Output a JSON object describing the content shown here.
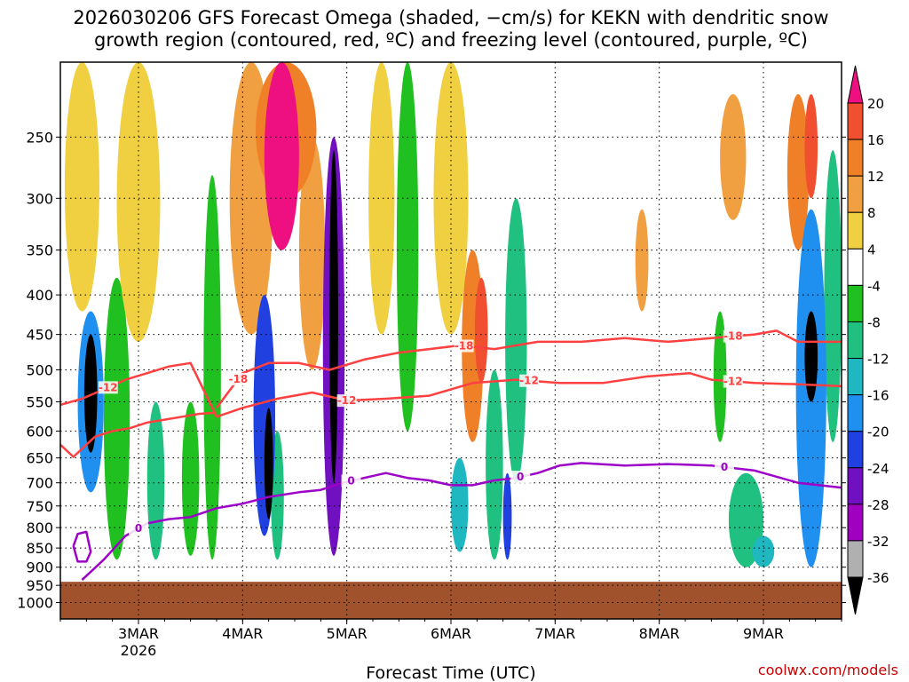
{
  "title": {
    "line1": "2026030206 GFS Forecast Omega (shaded, −cm/s) for KEKN with dendritic snow",
    "line2": "growth region (contoured, red, ºC) and freezing level (contoured, purple, ºC)"
  },
  "credit": "coolwx.com/models",
  "chart_data": {
    "type": "heatmap",
    "title": "2026030206 GFS Forecast Omega (shaded, −cm/s) for KEKN with dendritic snow growth region (contoured, red, ºC) and freezing level (contoured, purple, ºC)",
    "xlabel": "Forecast Time (UTC)",
    "ylabel": "",
    "x_range_hours": [
      0,
      180
    ],
    "y_range_hpa": [
      200,
      1050
    ],
    "x_ticks": [
      {
        "hour": 18,
        "label": "3MAR",
        "sublabel": "2026"
      },
      {
        "hour": 42,
        "label": "4MAR",
        "sublabel": ""
      },
      {
        "hour": 66,
        "label": "5MAR",
        "sublabel": ""
      },
      {
        "hour": 90,
        "label": "6MAR",
        "sublabel": ""
      },
      {
        "hour": 114,
        "label": "7MAR",
        "sublabel": ""
      },
      {
        "hour": 138,
        "label": "8MAR",
        "sublabel": ""
      },
      {
        "hour": 162,
        "label": "9MAR",
        "sublabel": ""
      }
    ],
    "y_ticks": [
      250,
      300,
      350,
      400,
      450,
      500,
      550,
      600,
      650,
      700,
      750,
      800,
      850,
      900,
      950,
      1000
    ],
    "surface_pressure_hpa": 940,
    "surface_color": "#a0522d",
    "colorbar": {
      "ticks": [
        "20",
        "16",
        "12",
        "8",
        "4",
        "-4",
        "-8",
        "-12",
        "-16",
        "-20",
        "-24",
        "-28",
        "-32",
        "-36"
      ],
      "bins": [
        {
          "label": ">20",
          "color": "#ee1080"
        },
        {
          "label": "16 to 20",
          "color": "#f05030"
        },
        {
          "label": "12 to 16",
          "color": "#f08028"
        },
        {
          "label": "8 to 12",
          "color": "#f0a040"
        },
        {
          "label": "4 to 8",
          "color": "#f0d040"
        },
        {
          "label": "-4 to 4",
          "color": "#ffffff"
        },
        {
          "label": "-8 to -4",
          "color": "#20c020"
        },
        {
          "label": "-12 to -8",
          "color": "#20c080"
        },
        {
          "label": "-16 to -12",
          "color": "#20b8c0"
        },
        {
          "label": "-20 to -16",
          "color": "#2090f0"
        },
        {
          "label": "-24 to -20",
          "color": "#2040e0"
        },
        {
          "label": "-28 to -24",
          "color": "#7010c0"
        },
        {
          "label": "-32 to -28",
          "color": "#a000c0"
        },
        {
          "label": "-36 to -32",
          "color": "#b0b0b0"
        },
        {
          "label": "<-36",
          "color": "#000000"
        }
      ]
    },
    "omega_features": [
      {
        "hour": 7,
        "p_top": 450,
        "p_bottom": 640,
        "width": 3,
        "value": -38
      },
      {
        "hour": 7,
        "p_top": 420,
        "p_bottom": 720,
        "width": 6,
        "value": -18
      },
      {
        "hour": 13,
        "p_top": 380,
        "p_bottom": 880,
        "width": 6,
        "value": -6
      },
      {
        "hour": 18,
        "p_top": 200,
        "p_bottom": 460,
        "width": 10,
        "value": 6
      },
      {
        "hour": 5,
        "p_top": 200,
        "p_bottom": 420,
        "width": 8,
        "value": 6
      },
      {
        "hour": 22,
        "p_top": 550,
        "p_bottom": 880,
        "width": 4,
        "value": -8
      },
      {
        "hour": 30,
        "p_top": 550,
        "p_bottom": 870,
        "width": 4,
        "value": -6
      },
      {
        "hour": 35,
        "p_top": 280,
        "p_bottom": 880,
        "width": 4,
        "value": -7
      },
      {
        "hour": 44,
        "p_top": 200,
        "p_bottom": 450,
        "width": 10,
        "value": 10
      },
      {
        "hour": 47,
        "p_top": 400,
        "p_bottom": 820,
        "width": 5,
        "value": -20
      },
      {
        "hour": 48,
        "p_top": 560,
        "p_bottom": 780,
        "width": 2,
        "value": -38
      },
      {
        "hour": 51,
        "p_top": 200,
        "p_bottom": 350,
        "width": 8,
        "value": 22
      },
      {
        "hour": 52,
        "p_top": 200,
        "p_bottom": 300,
        "width": 14,
        "value": 14
      },
      {
        "hour": 50,
        "p_top": 600,
        "p_bottom": 880,
        "width": 3,
        "value": -8
      },
      {
        "hour": 63,
        "p_top": 250,
        "p_bottom": 870,
        "width": 5,
        "value": -24
      },
      {
        "hour": 63,
        "p_top": 260,
        "p_bottom": 700,
        "width": 2,
        "value": -38
      },
      {
        "hour": 58,
        "p_top": 250,
        "p_bottom": 500,
        "width": 6,
        "value": 8
      },
      {
        "hour": 74,
        "p_top": 200,
        "p_bottom": 450,
        "width": 6,
        "value": 6
      },
      {
        "hour": 80,
        "p_top": 200,
        "p_bottom": 600,
        "width": 5,
        "value": -6
      },
      {
        "hour": 90,
        "p_top": 200,
        "p_bottom": 450,
        "width": 8,
        "value": 5
      },
      {
        "hour": 95,
        "p_top": 350,
        "p_bottom": 620,
        "width": 5,
        "value": 14
      },
      {
        "hour": 97,
        "p_top": 380,
        "p_bottom": 520,
        "width": 3,
        "value": 18
      },
      {
        "hour": 103,
        "p_top": 680,
        "p_bottom": 880,
        "width": 2,
        "value": -22
      },
      {
        "hour": 105,
        "p_top": 300,
        "p_bottom": 700,
        "width": 5,
        "value": -9
      },
      {
        "hour": 100,
        "p_top": 500,
        "p_bottom": 880,
        "width": 4,
        "value": -8
      },
      {
        "hour": 92,
        "p_top": 650,
        "p_bottom": 860,
        "width": 4,
        "value": -14
      },
      {
        "hour": 134,
        "p_top": 310,
        "p_bottom": 420,
        "width": 3,
        "value": 10
      },
      {
        "hour": 155,
        "p_top": 220,
        "p_bottom": 320,
        "width": 6,
        "value": 10
      },
      {
        "hour": 170,
        "p_top": 220,
        "p_bottom": 350,
        "width": 5,
        "value": 12
      },
      {
        "hour": 173,
        "p_top": 220,
        "p_bottom": 300,
        "width": 3,
        "value": 18
      },
      {
        "hour": 173,
        "p_top": 310,
        "p_bottom": 900,
        "width": 7,
        "value": -18
      },
      {
        "hour": 173,
        "p_top": 420,
        "p_bottom": 550,
        "width": 3,
        "value": -38
      },
      {
        "hour": 178,
        "p_top": 260,
        "p_bottom": 620,
        "width": 4,
        "value": -8
      },
      {
        "hour": 158,
        "p_top": 680,
        "p_bottom": 900,
        "width": 8,
        "value": -8
      },
      {
        "hour": 162,
        "p_top": 820,
        "p_bottom": 900,
        "width": 5,
        "value": -14
      },
      {
        "hour": 152,
        "p_top": 420,
        "p_bottom": 620,
        "width": 3,
        "value": -6
      }
    ],
    "series": [
      {
        "name": "-18C isotherm",
        "color": "#ff4040",
        "label": "-18",
        "label_hours": [
          41,
          93,
          155
        ],
        "hours": [
          36,
          42,
          48,
          55,
          62,
          70,
          78,
          85,
          92,
          100,
          110,
          120,
          130,
          140,
          150,
          160,
          165,
          170,
          180
        ],
        "p": [
          560,
          505,
          490,
          490,
          500,
          485,
          475,
          470,
          465,
          470,
          460,
          460,
          455,
          460,
          455,
          450,
          445,
          460,
          460
        ]
      },
      {
        "name": "-12C isotherm",
        "color": "#ff4040",
        "label": "-12",
        "label_hours": [
          11,
          66,
          108,
          155
        ],
        "hours": [
          0,
          5,
          10,
          15,
          20,
          25,
          30,
          36,
          42,
          50,
          58,
          66,
          75,
          85,
          95,
          105,
          115,
          125,
          135,
          145,
          150,
          160,
          170,
          180
        ],
        "p": [
          555,
          545,
          530,
          515,
          505,
          495,
          490,
          575,
          560,
          545,
          535,
          548,
          545,
          540,
          520,
          515,
          520,
          520,
          510,
          505,
          515,
          520,
          522,
          525
        ]
      },
      {
        "name": "-12C isotherm (lower)",
        "color": "#ff4040",
        "label": "",
        "label_hours": [],
        "hours": [
          0,
          3,
          6,
          8,
          12,
          16,
          20,
          24,
          28,
          32,
          36
        ],
        "p": [
          625,
          648,
          625,
          610,
          600,
          595,
          585,
          580,
          575,
          570,
          568
        ]
      },
      {
        "name": "0C freezing level",
        "color": "#9d00c8",
        "label": "0",
        "label_hours": [
          18,
          67,
          106,
          153
        ],
        "hours": [
          5,
          10,
          15,
          20,
          25,
          30,
          36,
          42,
          48,
          55,
          60,
          65,
          70,
          75,
          80,
          85,
          90,
          95,
          100,
          105,
          110,
          115,
          120,
          130,
          140,
          150,
          160,
          170,
          180
        ],
        "p": [
          935,
          880,
          820,
          790,
          780,
          775,
          755,
          745,
          730,
          720,
          715,
          700,
          690,
          680,
          690,
          695,
          705,
          705,
          695,
          690,
          680,
          665,
          660,
          665,
          662,
          665,
          675,
          700,
          710
        ]
      },
      {
        "name": "0C freezing level (small loop)",
        "color": "#9d00c8",
        "label": "",
        "label_hours": [],
        "hours": [
          3,
          4,
          6,
          7,
          6,
          4,
          3
        ],
        "p": [
          845,
          815,
          810,
          860,
          885,
          885,
          845
        ]
      }
    ]
  }
}
